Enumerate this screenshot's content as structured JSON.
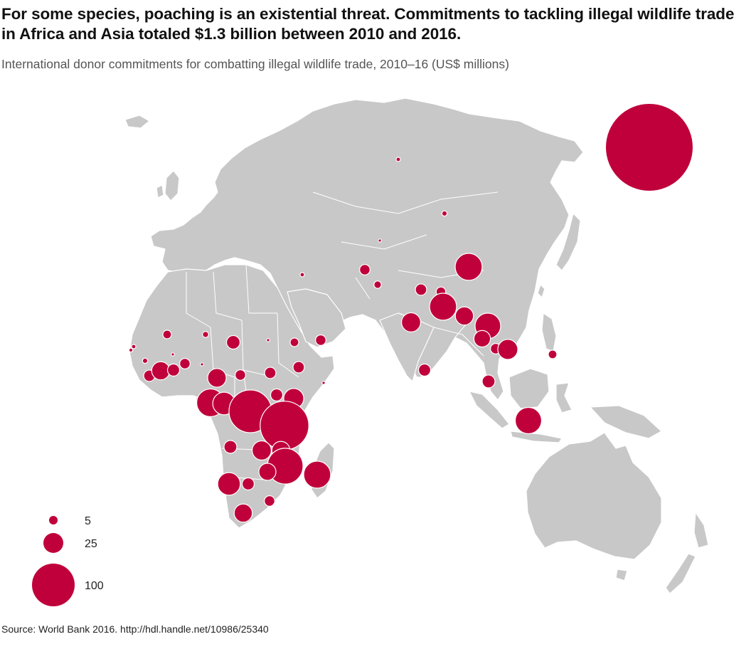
{
  "title": "For some species, poaching is an existential threat. Commitments to tackling illegal wildlife trade in Africa and Asia totaled $1.3 billion between 2010 and 2016.",
  "subtitle": "International donor commitments for combatting illegal wildlife trade, 2010–16 (US$ millions)",
  "source": "Source: World Bank 2016. http://hdl.handle.net/10986/25340",
  "colors": {
    "bubble": "#c0003b",
    "land": "#c8c8c8",
    "border": "#ffffff"
  },
  "legend": [
    {
      "value": 5,
      "label": "5"
    },
    {
      "value": 25,
      "label": "25"
    },
    {
      "value": 100,
      "label": "100"
    }
  ],
  "regional_bubble": {
    "value": 450
  },
  "bubbles": [
    {
      "region": "Russia",
      "value": 1
    },
    {
      "region": "Mongolia",
      "value": 1.5
    },
    {
      "region": "Kyrgyzstan",
      "value": 0.5
    },
    {
      "region": "China",
      "value": 40
    },
    {
      "region": "Iraq",
      "value": 1
    },
    {
      "region": "Afghanistan",
      "value": 6
    },
    {
      "region": "Pakistan",
      "value": 3
    },
    {
      "region": "Nepal",
      "value": 7
    },
    {
      "region": "Bhutan",
      "value": 5
    },
    {
      "region": "Bangladesh",
      "value": 40
    },
    {
      "region": "India",
      "value": 20
    },
    {
      "region": "Myanmar",
      "value": 18
    },
    {
      "region": "Laos",
      "value": 36
    },
    {
      "region": "Thailand",
      "value": 15
    },
    {
      "region": "Cambodia",
      "value": 6
    },
    {
      "region": "Vietnam",
      "value": 22
    },
    {
      "region": "Philippines",
      "value": 4
    },
    {
      "region": "Sri Lanka",
      "value": 8
    },
    {
      "region": "Malaysia",
      "value": 9
    },
    {
      "region": "Indonesia",
      "value": 38
    },
    {
      "region": "Mali",
      "value": 4
    },
    {
      "region": "Niger",
      "value": 2
    },
    {
      "region": "Chad",
      "value": 10
    },
    {
      "region": "Sudan",
      "value": 0.3
    },
    {
      "region": "Eritrea",
      "value": 4
    },
    {
      "region": "Yemen",
      "value": 6
    },
    {
      "region": "Ethiopia",
      "value": 7
    },
    {
      "region": "Senegal",
      "value": 1
    },
    {
      "region": "The Gambia",
      "value": 0.8
    },
    {
      "region": "Guinea",
      "value": 1.5
    },
    {
      "region": "Sierra Leone",
      "value": 7
    },
    {
      "region": "Liberia",
      "value": 18
    },
    {
      "region": "Cote d'Ivoire",
      "value": 8
    },
    {
      "region": "Burkina Faso",
      "value": 0.5
    },
    {
      "region": "Ghana",
      "value": 6
    },
    {
      "region": "Togo",
      "value": 0.3
    },
    {
      "region": "Nigeria",
      "value": 19
    },
    {
      "region": "Central African Republic",
      "value": 6
    },
    {
      "region": "South Sudan",
      "value": 7
    },
    {
      "region": "Somalia",
      "value": 0.2
    },
    {
      "region": "Equatorial Guinea",
      "value": 0.5
    },
    {
      "region": "Gabon",
      "value": 42
    },
    {
      "region": "Congo",
      "value": 28
    },
    {
      "region": "DR Congo",
      "value": 100
    },
    {
      "region": "Uganda",
      "value": 8
    },
    {
      "region": "Rwanda",
      "value": 0.4
    },
    {
      "region": "Kenya",
      "value": 22
    },
    {
      "region": "Tanzania",
      "value": 130
    },
    {
      "region": "Angola",
      "value": 9
    },
    {
      "region": "Zambia",
      "value": 20
    },
    {
      "region": "Malawi",
      "value": 18
    },
    {
      "region": "Mozambique",
      "value": 70
    },
    {
      "region": "Zimbabwe",
      "value": 16
    },
    {
      "region": "Namibia",
      "value": 28
    },
    {
      "region": "Botswana",
      "value": 8
    },
    {
      "region": "South Africa",
      "value": 18
    },
    {
      "region": "Swaziland",
      "value": 6
    },
    {
      "region": "Madagascar",
      "value": 40
    }
  ]
}
